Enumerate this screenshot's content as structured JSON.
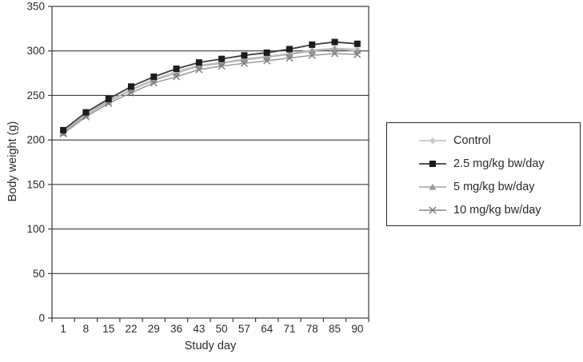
{
  "chart_data": {
    "type": "line",
    "title": "",
    "xlabel": "Study day",
    "ylabel": "Body weight (g)",
    "categories": [
      "1",
      "8",
      "15",
      "22",
      "29",
      "36",
      "43",
      "50",
      "57",
      "64",
      "71",
      "78",
      "85",
      "90"
    ],
    "ylim": [
      0,
      350
    ],
    "yticks": [
      0,
      50,
      100,
      150,
      200,
      250,
      300,
      350
    ],
    "grid": "horizontal",
    "legend_position": "right",
    "series": [
      {
        "name": "Control",
        "marker": "diamond",
        "marker_color": "#c9c9c9",
        "line_color": "#c4c4c4",
        "values": [
          209,
          229,
          244,
          257,
          268,
          277,
          284,
          287,
          291,
          294,
          297,
          301,
          303,
          302
        ]
      },
      {
        "name": "2.5 mg/kg bw/day",
        "marker": "square",
        "marker_color": "#1c1c1c",
        "line_color": "#3c3c3c",
        "values": [
          211,
          231,
          246,
          260,
          271,
          280,
          287,
          291,
          295,
          298,
          302,
          307,
          310,
          308
        ]
      },
      {
        "name": "5 mg/kg bw/day",
        "marker": "triangle",
        "marker_color": "#9a9a9a",
        "line_color": "#aeaeae",
        "values": [
          208,
          228,
          243,
          256,
          267,
          275,
          283,
          286,
          290,
          293,
          296,
          300,
          302,
          300
        ]
      },
      {
        "name": "10 mg/kg bw/day",
        "marker": "x",
        "marker_color": "#7a7a7a",
        "line_color": "#989898",
        "values": [
          207,
          226,
          241,
          253,
          264,
          271,
          279,
          283,
          286,
          289,
          292,
          295,
          297,
          296
        ]
      }
    ],
    "colors": {
      "axis": "#3b3b3b",
      "tick_text": "#2a2a2a",
      "background": "#ffffff",
      "legend_border": "#2a2a2a"
    }
  }
}
